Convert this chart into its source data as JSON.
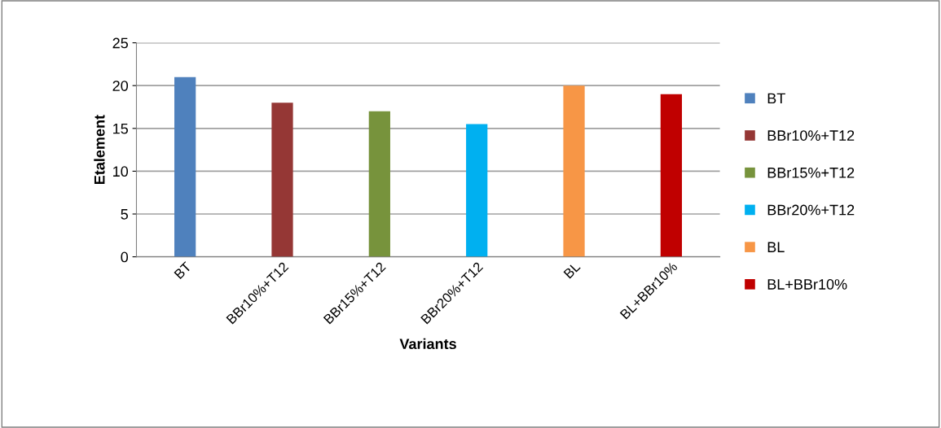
{
  "chart_data": {
    "type": "bar",
    "xlabel": "Variants",
    "ylabel": "Etalement",
    "categories": [
      "BT",
      "BBr10%+T12",
      "BBr15%+T12",
      "BBr20%+T12",
      "BL",
      "BL+BBr10%"
    ],
    "series": [
      {
        "name": "BT",
        "color": "#4f81bd",
        "values": [
          21,
          null,
          null,
          null,
          null,
          null
        ]
      },
      {
        "name": "BBr10%+T12",
        "color": "#953735",
        "values": [
          null,
          18,
          null,
          null,
          null,
          null
        ]
      },
      {
        "name": "BBr15%+T12",
        "color": "#77933c",
        "values": [
          null,
          null,
          17,
          null,
          null,
          null
        ]
      },
      {
        "name": "BBr20%+T12",
        "color": "#00b0f0",
        "values": [
          null,
          null,
          null,
          15.5,
          null,
          null
        ]
      },
      {
        "name": "BL",
        "color": "#f79646",
        "values": [
          null,
          null,
          null,
          null,
          20,
          null
        ]
      },
      {
        "name": "BL+BBr10%",
        "color": "#c00000",
        "values": [
          null,
          null,
          null,
          null,
          null,
          19
        ]
      }
    ],
    "ylim": [
      0,
      25
    ],
    "yticks": [
      0,
      5,
      10,
      15,
      20,
      25
    ],
    "grid": "y",
    "legend": "right"
  }
}
